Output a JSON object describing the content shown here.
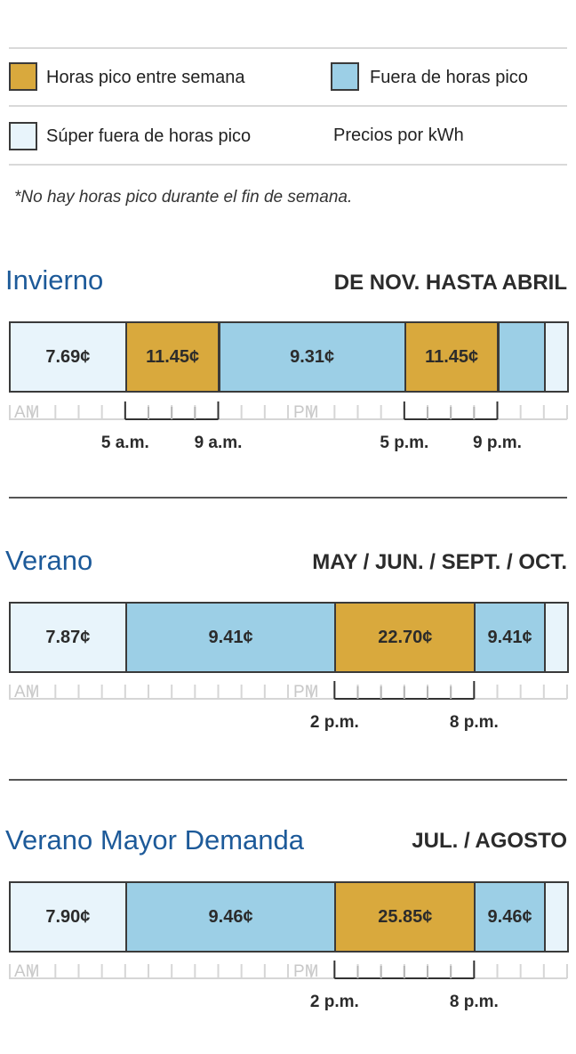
{
  "legend": {
    "items": [
      {
        "label": "Horas pico entre semana",
        "color": "#d9a93d"
      },
      {
        "label": "Fuera de horas pico",
        "color": "#9ccfe6"
      },
      {
        "label": "Súper fuera de horas pico",
        "color": "#e8f4fb"
      }
    ],
    "unit_label": "Precios por kWh"
  },
  "note": "*No hay horas pico durante el fin de semana.",
  "colors": {
    "peak": "#d9a93d",
    "off_peak": "#9ccfe6",
    "super_off_peak": "#e8f4fb"
  },
  "chart_data": [
    {
      "type": "bar",
      "title": "Invierno",
      "subtitle": "DE NOV. HASTA ABRIL",
      "axis": {
        "start_hour": 0,
        "end_hour": 24,
        "am_label": "AM",
        "pm_label": "PM"
      },
      "segments": [
        {
          "start_hour": 0,
          "end_hour": 5,
          "rate": "7.69¢",
          "tier": "super_off_peak"
        },
        {
          "start_hour": 5,
          "end_hour": 9,
          "rate": "11.45¢",
          "tier": "peak"
        },
        {
          "start_hour": 9,
          "end_hour": 17,
          "rate": "9.31¢",
          "tier": "off_peak"
        },
        {
          "start_hour": 17,
          "end_hour": 21,
          "rate": "11.45¢",
          "tier": "peak"
        },
        {
          "start_hour": 21,
          "end_hour": 23,
          "rate": "",
          "tier": "off_peak"
        },
        {
          "start_hour": 23,
          "end_hour": 24,
          "rate": "",
          "tier": "super_off_peak"
        }
      ],
      "peak_windows": [
        {
          "start_hour": 5,
          "end_hour": 9,
          "start_label": "5 a.m.",
          "end_label": "9 a.m."
        },
        {
          "start_hour": 17,
          "end_hour": 21,
          "start_label": "5 p.m.",
          "end_label": "9 p.m."
        }
      ]
    },
    {
      "type": "bar",
      "title": "Verano",
      "subtitle": "MAY / JUN. / SEPT. / OCT.",
      "axis": {
        "start_hour": 0,
        "end_hour": 24,
        "am_label": "AM",
        "pm_label": "PM"
      },
      "segments": [
        {
          "start_hour": 0,
          "end_hour": 5,
          "rate": "7.87¢",
          "tier": "super_off_peak"
        },
        {
          "start_hour": 5,
          "end_hour": 14,
          "rate": "9.41¢",
          "tier": "off_peak"
        },
        {
          "start_hour": 14,
          "end_hour": 20,
          "rate": "22.70¢",
          "tier": "peak"
        },
        {
          "start_hour": 20,
          "end_hour": 23,
          "rate": "9.41¢",
          "tier": "off_peak"
        },
        {
          "start_hour": 23,
          "end_hour": 24,
          "rate": "",
          "tier": "super_off_peak"
        }
      ],
      "peak_windows": [
        {
          "start_hour": 14,
          "end_hour": 20,
          "start_label": "2 p.m.",
          "end_label": "8 p.m."
        }
      ]
    },
    {
      "type": "bar",
      "title": "Verano Mayor Demanda",
      "subtitle": "JUL. / AGOSTO",
      "axis": {
        "start_hour": 0,
        "end_hour": 24,
        "am_label": "AM",
        "pm_label": "PM"
      },
      "segments": [
        {
          "start_hour": 0,
          "end_hour": 5,
          "rate": "7.90¢",
          "tier": "super_off_peak"
        },
        {
          "start_hour": 5,
          "end_hour": 14,
          "rate": "9.46¢",
          "tier": "off_peak"
        },
        {
          "start_hour": 14,
          "end_hour": 20,
          "rate": "25.85¢",
          "tier": "peak"
        },
        {
          "start_hour": 20,
          "end_hour": 23,
          "rate": "9.46¢",
          "tier": "off_peak"
        },
        {
          "start_hour": 23,
          "end_hour": 24,
          "rate": "",
          "tier": "super_off_peak"
        }
      ],
      "peak_windows": [
        {
          "start_hour": 14,
          "end_hour": 20,
          "start_label": "2 p.m.",
          "end_label": "8 p.m."
        }
      ]
    }
  ]
}
